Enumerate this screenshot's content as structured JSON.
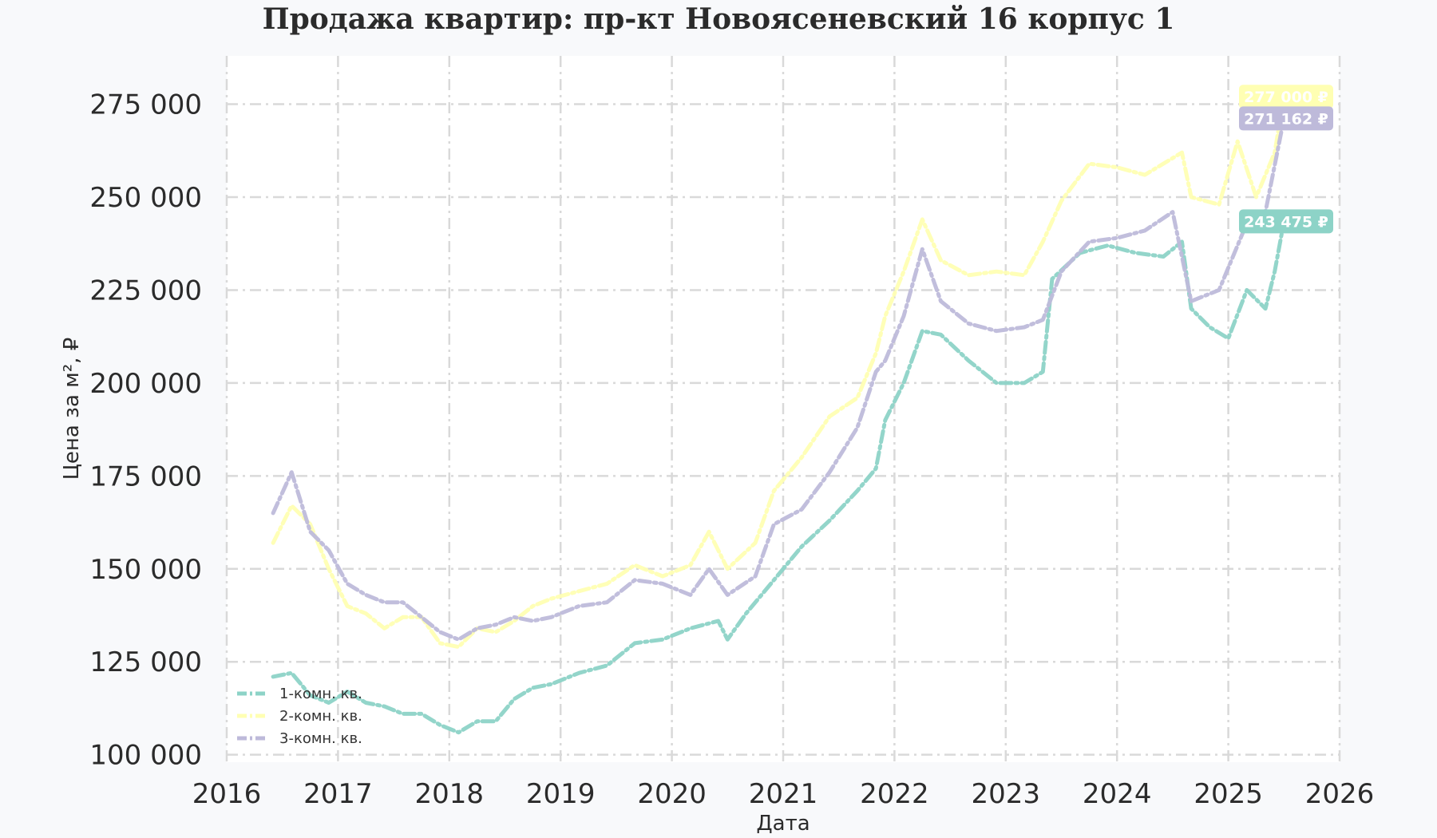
{
  "chart_data": {
    "type": "line",
    "title": "Продажа квартир: пр-кт Новоясеневский 16 корпус 1",
    "xlabel": "Дата",
    "ylabel": "Цена за м², ₽",
    "xlim": [
      "2016-01-01",
      "2026-01-01"
    ],
    "ylim": [
      98000,
      288000
    ],
    "x_ticks": [
      "2016",
      "2017",
      "2018",
      "2019",
      "2020",
      "2021",
      "2022",
      "2023",
      "2024",
      "2025",
      "2026"
    ],
    "y_ticks": [
      {
        "value": 100000,
        "label": "100 000"
      },
      {
        "value": 125000,
        "label": "125 000"
      },
      {
        "value": 150000,
        "label": "150 000"
      },
      {
        "value": 175000,
        "label": "175 000"
      },
      {
        "value": 200000,
        "label": "200 000"
      },
      {
        "value": 225000,
        "label": "225 000"
      },
      {
        "value": 250000,
        "label": "250 000"
      },
      {
        "value": 275000,
        "label": "275 000"
      }
    ],
    "grid": true,
    "legend_position": "bottom-left",
    "series": [
      {
        "name": "1-комн. кв.",
        "color": "#8dd3c7",
        "end_label": "243 475 ₽",
        "points": [
          [
            "2016-06-01",
            121000
          ],
          [
            "2016-08-01",
            122000
          ],
          [
            "2016-10-01",
            116000
          ],
          [
            "2016-12-01",
            114000
          ],
          [
            "2017-02-01",
            117000
          ],
          [
            "2017-04-01",
            114000
          ],
          [
            "2017-06-01",
            113000
          ],
          [
            "2017-08-01",
            111000
          ],
          [
            "2017-10-01",
            111000
          ],
          [
            "2017-12-01",
            108000
          ],
          [
            "2018-02-01",
            106000
          ],
          [
            "2018-04-01",
            109000
          ],
          [
            "2018-06-01",
            109000
          ],
          [
            "2018-08-01",
            115000
          ],
          [
            "2018-10-01",
            118000
          ],
          [
            "2018-12-01",
            119000
          ],
          [
            "2019-03-01",
            122000
          ],
          [
            "2019-06-01",
            124000
          ],
          [
            "2019-09-01",
            130000
          ],
          [
            "2019-12-01",
            131000
          ],
          [
            "2020-03-01",
            134000
          ],
          [
            "2020-06-01",
            136000
          ],
          [
            "2020-07-01",
            131000
          ],
          [
            "2020-09-01",
            138000
          ],
          [
            "2020-12-01",
            147000
          ],
          [
            "2021-03-01",
            156000
          ],
          [
            "2021-06-01",
            163000
          ],
          [
            "2021-09-01",
            171000
          ],
          [
            "2021-11-01",
            177000
          ],
          [
            "2021-12-01",
            190000
          ],
          [
            "2022-02-01",
            200000
          ],
          [
            "2022-04-01",
            214000
          ],
          [
            "2022-06-01",
            213000
          ],
          [
            "2022-09-01",
            206000
          ],
          [
            "2022-12-01",
            200000
          ],
          [
            "2023-03-01",
            200000
          ],
          [
            "2023-05-01",
            203000
          ],
          [
            "2023-06-01",
            228000
          ],
          [
            "2023-09-01",
            235000
          ],
          [
            "2023-12-01",
            237000
          ],
          [
            "2024-03-01",
            235000
          ],
          [
            "2024-06-01",
            234000
          ],
          [
            "2024-08-01",
            238000
          ],
          [
            "2024-09-01",
            220000
          ],
          [
            "2024-11-01",
            215000
          ],
          [
            "2025-01-01",
            212000
          ],
          [
            "2025-03-01",
            225000
          ],
          [
            "2025-05-01",
            220000
          ],
          [
            "2025-06-01",
            230000
          ],
          [
            "2025-07-01",
            243475
          ]
        ]
      },
      {
        "name": "2-комн. кв.",
        "color": "#ffffb3",
        "end_label": "277 000 ₽",
        "points": [
          [
            "2016-06-01",
            157000
          ],
          [
            "2016-08-01",
            167000
          ],
          [
            "2016-10-01",
            162000
          ],
          [
            "2016-12-01",
            150000
          ],
          [
            "2017-02-01",
            140000
          ],
          [
            "2017-04-01",
            138000
          ],
          [
            "2017-06-01",
            134000
          ],
          [
            "2017-08-01",
            137000
          ],
          [
            "2017-10-01",
            137000
          ],
          [
            "2017-12-01",
            130000
          ],
          [
            "2018-02-01",
            129000
          ],
          [
            "2018-04-01",
            134000
          ],
          [
            "2018-06-01",
            133000
          ],
          [
            "2018-08-01",
            136000
          ],
          [
            "2018-10-01",
            140000
          ],
          [
            "2018-12-01",
            142000
          ],
          [
            "2019-03-01",
            144000
          ],
          [
            "2019-06-01",
            146000
          ],
          [
            "2019-09-01",
            151000
          ],
          [
            "2019-12-01",
            148000
          ],
          [
            "2020-03-01",
            151000
          ],
          [
            "2020-05-01",
            160000
          ],
          [
            "2020-07-01",
            150000
          ],
          [
            "2020-10-01",
            157000
          ],
          [
            "2020-12-01",
            171000
          ],
          [
            "2021-03-01",
            180000
          ],
          [
            "2021-06-01",
            191000
          ],
          [
            "2021-09-01",
            196000
          ],
          [
            "2021-11-01",
            208000
          ],
          [
            "2021-12-01",
            218000
          ],
          [
            "2022-02-01",
            230000
          ],
          [
            "2022-04-01",
            244000
          ],
          [
            "2022-06-01",
            233000
          ],
          [
            "2022-09-01",
            229000
          ],
          [
            "2022-12-01",
            230000
          ],
          [
            "2023-03-01",
            229000
          ],
          [
            "2023-05-01",
            238000
          ],
          [
            "2023-07-01",
            249000
          ],
          [
            "2023-10-01",
            259000
          ],
          [
            "2024-01-01",
            258000
          ],
          [
            "2024-04-01",
            256000
          ],
          [
            "2024-08-01",
            262000
          ],
          [
            "2024-09-01",
            250000
          ],
          [
            "2024-12-01",
            248000
          ],
          [
            "2025-02-01",
            265000
          ],
          [
            "2025-04-01",
            250000
          ],
          [
            "2025-06-01",
            262000
          ],
          [
            "2025-07-01",
            277000
          ]
        ]
      },
      {
        "name": "3-комн. кв.",
        "color": "#bebada",
        "end_label": "271 162 ₽",
        "points": [
          [
            "2016-06-01",
            165000
          ],
          [
            "2016-08-01",
            176000
          ],
          [
            "2016-10-01",
            160000
          ],
          [
            "2016-12-01",
            155000
          ],
          [
            "2017-02-01",
            146000
          ],
          [
            "2017-04-01",
            143000
          ],
          [
            "2017-06-01",
            141000
          ],
          [
            "2017-08-01",
            141000
          ],
          [
            "2017-10-01",
            137000
          ],
          [
            "2017-12-01",
            133000
          ],
          [
            "2018-02-01",
            131000
          ],
          [
            "2018-04-01",
            134000
          ],
          [
            "2018-06-01",
            135000
          ],
          [
            "2018-08-01",
            137000
          ],
          [
            "2018-10-01",
            136000
          ],
          [
            "2018-12-01",
            137000
          ],
          [
            "2019-03-01",
            140000
          ],
          [
            "2019-06-01",
            141000
          ],
          [
            "2019-09-01",
            147000
          ],
          [
            "2019-12-01",
            146000
          ],
          [
            "2020-03-01",
            143000
          ],
          [
            "2020-05-01",
            150000
          ],
          [
            "2020-07-01",
            143000
          ],
          [
            "2020-10-01",
            148000
          ],
          [
            "2020-12-01",
            162000
          ],
          [
            "2021-03-01",
            166000
          ],
          [
            "2021-06-01",
            176000
          ],
          [
            "2021-09-01",
            188000
          ],
          [
            "2021-11-01",
            203000
          ],
          [
            "2021-12-01",
            206000
          ],
          [
            "2022-02-01",
            218000
          ],
          [
            "2022-04-01",
            236000
          ],
          [
            "2022-06-01",
            222000
          ],
          [
            "2022-09-01",
            216000
          ],
          [
            "2022-12-01",
            214000
          ],
          [
            "2023-03-01",
            215000
          ],
          [
            "2023-05-01",
            217000
          ],
          [
            "2023-07-01",
            230000
          ],
          [
            "2023-10-01",
            238000
          ],
          [
            "2024-01-01",
            239000
          ],
          [
            "2024-04-01",
            241000
          ],
          [
            "2024-07-01",
            246000
          ],
          [
            "2024-09-01",
            222000
          ],
          [
            "2024-12-01",
            225000
          ],
          [
            "2025-03-01",
            243000
          ],
          [
            "2025-05-01",
            246000
          ],
          [
            "2025-07-01",
            271162
          ]
        ]
      }
    ]
  }
}
